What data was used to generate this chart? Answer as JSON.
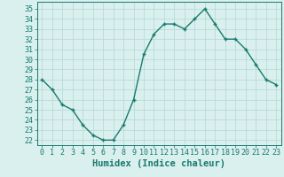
{
  "x": [
    0,
    1,
    2,
    3,
    4,
    5,
    6,
    7,
    8,
    9,
    10,
    11,
    12,
    13,
    14,
    15,
    16,
    17,
    18,
    19,
    20,
    21,
    22,
    23
  ],
  "y": [
    28,
    27,
    25.5,
    25,
    23.5,
    22.5,
    22,
    22,
    23.5,
    26,
    30.5,
    32.5,
    33.5,
    33.5,
    33,
    34,
    35,
    33.5,
    32,
    32,
    31,
    29.5,
    28,
    27.5
  ],
  "line_color": "#1a7a6e",
  "bg_color": "#d9f0ee",
  "grid_color": "#b8dbd8",
  "xlabel": "Humidex (Indice chaleur)",
  "xlim": [
    -0.5,
    23.5
  ],
  "ylim": [
    21.5,
    35.7
  ],
  "yticks": [
    22,
    23,
    24,
    25,
    26,
    27,
    28,
    29,
    30,
    31,
    32,
    33,
    34,
    35
  ],
  "xticks": [
    0,
    1,
    2,
    3,
    4,
    5,
    6,
    7,
    8,
    9,
    10,
    11,
    12,
    13,
    14,
    15,
    16,
    17,
    18,
    19,
    20,
    21,
    22,
    23
  ],
  "marker": "+",
  "marker_size": 3.5,
  "line_width": 1.0,
  "xlabel_fontsize": 7.5,
  "tick_fontsize": 6,
  "label_color": "#1a7a6e"
}
